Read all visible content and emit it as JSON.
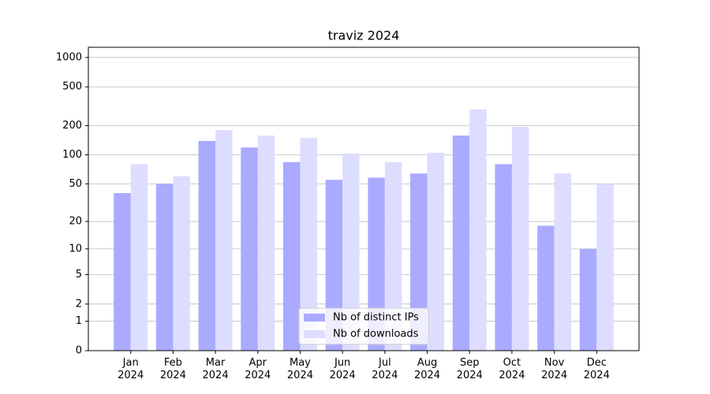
{
  "chart_data": {
    "type": "bar",
    "title": "traviz 2024",
    "categories": [
      "Jan\n2024",
      "Feb\n2024",
      "Mar\n2024",
      "Apr\n2024",
      "May\n2024",
      "Jun\n2024",
      "Jul\n2024",
      "Aug\n2024",
      "Sep\n2024",
      "Oct\n2024",
      "Nov\n2024",
      "Dec\n2024"
    ],
    "series": [
      {
        "name": "Nb of distinct IPs",
        "color": "#aaaaff",
        "values": [
          40,
          50,
          139,
          119,
          84,
          55,
          58,
          64,
          158,
          80,
          18,
          10
        ]
      },
      {
        "name": "Nb of downloads",
        "color": "#ddddff",
        "values": [
          80,
          60,
          180,
          158,
          149,
          103,
          84,
          105,
          293,
          194,
          64,
          50
        ]
      }
    ],
    "yscale": "log1p",
    "ylim": [
      0,
      1272
    ],
    "yticks": [
      0,
      1,
      2,
      5,
      10,
      20,
      50,
      100,
      200,
      500,
      1000
    ],
    "grid": true,
    "legend": "lower center"
  }
}
